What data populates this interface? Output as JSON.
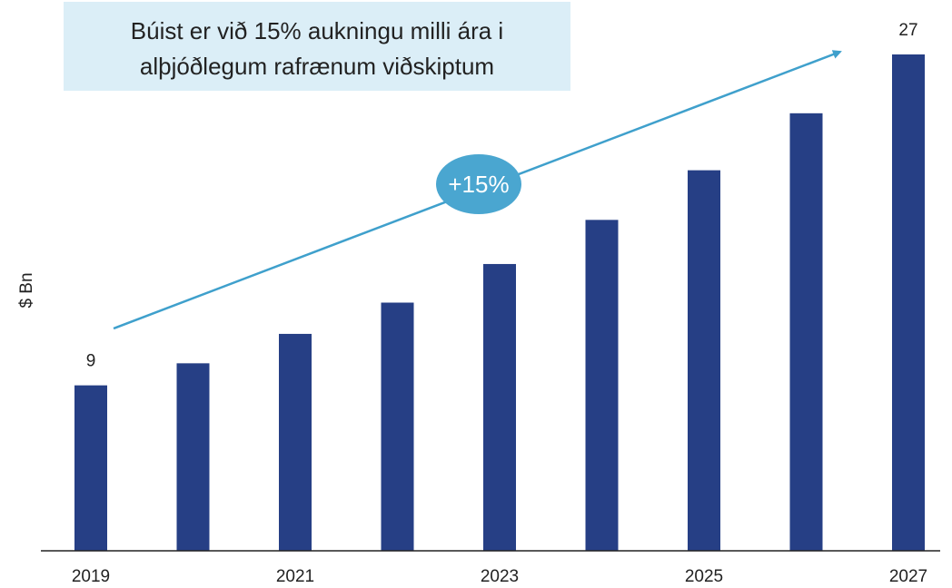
{
  "chart_data": {
    "type": "bar",
    "annotation": [
      "Búist er við 15% aukningu milli ára i",
      "alþjóðlegum rafrænum viðskiptum"
    ],
    "growth_label": "+15%",
    "y_label": "$ Bn",
    "categories": [
      "2019",
      null,
      "2021",
      null,
      "2023",
      null,
      "2025",
      null,
      "2027"
    ],
    "values": [
      9,
      10.2,
      11.8,
      13.5,
      15.6,
      18,
      20.7,
      23.8,
      27
    ],
    "color": "#263f85",
    "ylim": [
      0,
      27
    ],
    "grid": false
  }
}
